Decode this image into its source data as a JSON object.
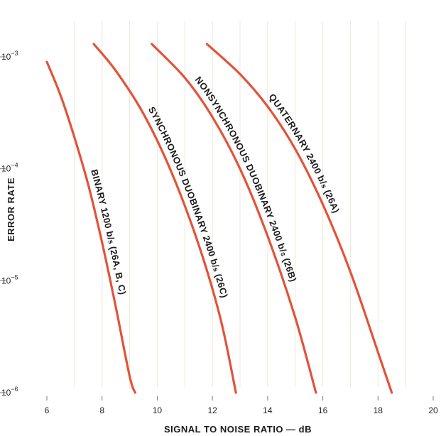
{
  "chart_data": {
    "type": "line",
    "title": "",
    "xlabel": "SIGNAL TO NOISE RATIO — dB",
    "ylabel": "ERROR RATE",
    "xlim": [
      6,
      20
    ],
    "ylim": [
      1e-06,
      0.0013
    ],
    "y_scale": "log",
    "x_ticks": [
      "6",
      "8",
      "10",
      "12",
      "14",
      "16",
      "18",
      "20"
    ],
    "y_ticks": [
      {
        "value": 0.001,
        "base": "10",
        "exp": "−3"
      },
      {
        "value": 0.0001,
        "base": "10",
        "exp": "−4"
      },
      {
        "value": 1e-05,
        "base": "10",
        "exp": "−5"
      },
      {
        "value": 1e-06,
        "base": "10",
        "exp": "−6"
      }
    ],
    "grid": false,
    "line_color": "#e2533a",
    "series": [
      {
        "name": "BINARY 1200 b/s (26A, B, C)",
        "x": [
          6.0,
          6.5,
          7.0,
          7.5,
          8.0,
          8.5,
          9.0,
          9.2
        ],
        "y": [
          0.0009,
          0.00045,
          0.00019,
          7.2e-05,
          2.2e-05,
          5.8e-06,
          1.4e-06,
          1e-06
        ]
      },
      {
        "name": "SYNCHRONOUS DUOBINARY 2400 b/s (26C)",
        "x": [
          7.7,
          8.5,
          9.5,
          10.5,
          11.5,
          12.3,
          12.85
        ],
        "y": [
          0.0013,
          0.00075,
          0.00031,
          9.5e-05,
          2.1e-05,
          4.5e-06,
          1e-06
        ]
      },
      {
        "name": "NONSYNCHRONOUS DUOBINARY 2400 b/s (26B)",
        "x": [
          9.8,
          11.0,
          12.0,
          13.0,
          14.0,
          15.0,
          15.75
        ],
        "y": [
          0.0013,
          0.00065,
          0.00029,
          0.0001,
          2.5e-05,
          4.7e-06,
          1e-06
        ]
      },
      {
        "name": "QUATERNARY 2400 b/s (26A)",
        "x": [
          11.8,
          13.0,
          14.0,
          15.0,
          16.0,
          17.0,
          18.0,
          18.5
        ],
        "y": [
          0.0013,
          0.0007,
          0.00036,
          0.00015,
          4.8e-05,
          1.2e-05,
          2.3e-06,
          1e-06
        ]
      }
    ],
    "annotations": [
      {
        "series": 0,
        "parts": [
          {
            "t": "BINARY "
          },
          {
            "t": "1200"
          },
          {
            "t": " b/"
          },
          {
            "t": "s",
            "sub": true
          },
          {
            "t": " (26A, B, C)"
          }
        ]
      },
      {
        "series": 1,
        "parts": [
          {
            "t": "SYNCHRONOUS DUOBINARY "
          },
          {
            "t": "2400"
          },
          {
            "t": " b/"
          },
          {
            "t": "s",
            "sub": true
          },
          {
            "t": " (26C)"
          }
        ]
      },
      {
        "series": 2,
        "parts": [
          {
            "t": "NONSYNCHRONOUS DUOBINARY "
          },
          {
            "t": "2400"
          },
          {
            "t": " b/"
          },
          {
            "t": "s",
            "sub": true
          },
          {
            "t": " (26B)"
          }
        ]
      },
      {
        "series": 3,
        "parts": [
          {
            "t": "QUATERNARY "
          },
          {
            "t": "2400"
          },
          {
            "t": " b/"
          },
          {
            "t": "s",
            "sub": true
          },
          {
            "t": " (26A)"
          }
        ]
      }
    ]
  }
}
